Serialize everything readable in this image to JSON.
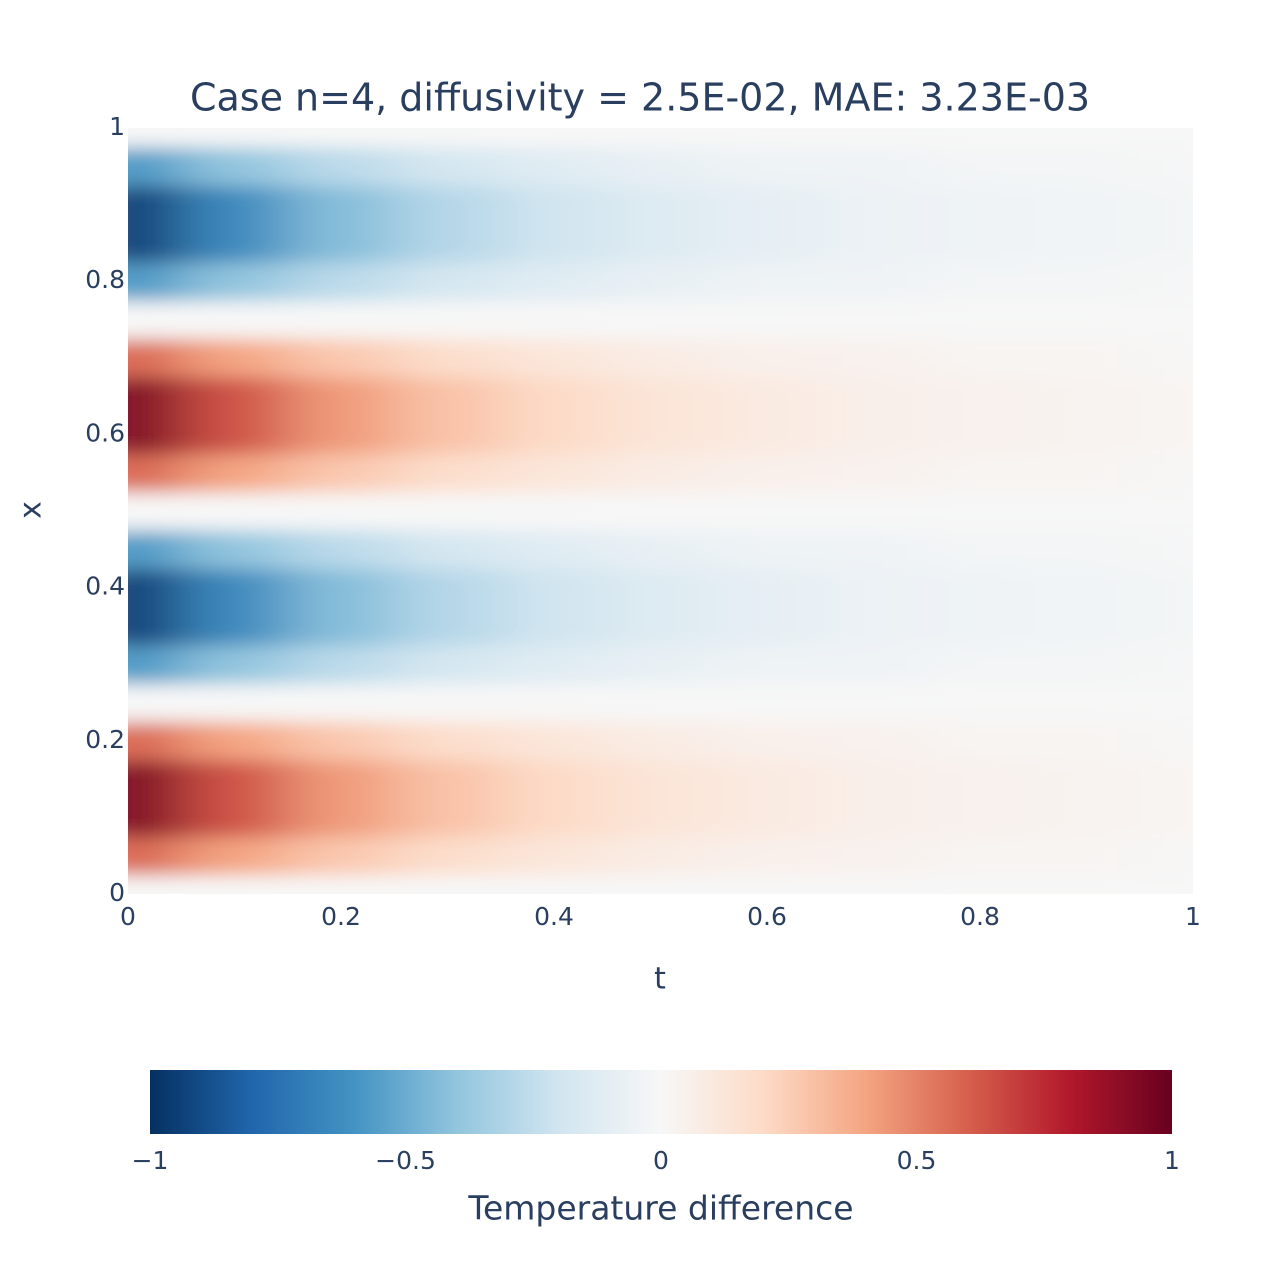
{
  "chart_data": {
    "type": "heatmap",
    "title": "Case n=4, diffusivity = 2.5E-02, MAE: 3.23E-03",
    "x_label": "t",
    "y_label": "x",
    "x": [
      0,
      0.1,
      0.2,
      0.3,
      0.4,
      0.5,
      0.6,
      0.7,
      0.8,
      0.9,
      1
    ],
    "y": [
      0,
      0.05,
      0.1,
      0.15,
      0.2,
      0.25,
      0.3,
      0.35,
      0.4,
      0.45,
      0.5,
      0.55,
      0.6,
      0.65,
      0.7,
      0.75,
      0.8,
      0.85,
      0.9,
      0.95,
      1
    ],
    "z": [
      [
        0,
        0,
        0,
        0,
        0,
        0,
        0,
        0,
        0,
        0,
        0
      ],
      [
        0.59,
        0.4,
        0.27,
        0.18,
        0.12,
        0.08,
        0.05,
        0.04,
        0.02,
        0.02,
        0.01
      ],
      [
        0.95,
        0.64,
        0.43,
        0.29,
        0.2,
        0.13,
        0.09,
        0.06,
        0.04,
        0.03,
        0.02
      ],
      [
        0.95,
        0.64,
        0.43,
        0.29,
        0.2,
        0.13,
        0.09,
        0.06,
        0.04,
        0.03,
        0.02
      ],
      [
        0.59,
        0.4,
        0.27,
        0.18,
        0.12,
        0.08,
        0.05,
        0.04,
        0.02,
        0.02,
        0.01
      ],
      [
        0,
        0,
        0,
        0,
        0,
        0,
        0,
        0,
        0,
        0,
        0
      ],
      [
        -0.59,
        -0.4,
        -0.27,
        -0.18,
        -0.12,
        -0.08,
        -0.05,
        -0.04,
        -0.02,
        -0.02,
        -0.01
      ],
      [
        -0.95,
        -0.64,
        -0.43,
        -0.29,
        -0.2,
        -0.13,
        -0.09,
        -0.06,
        -0.04,
        -0.03,
        -0.02
      ],
      [
        -0.95,
        -0.64,
        -0.43,
        -0.29,
        -0.2,
        -0.13,
        -0.09,
        -0.06,
        -0.04,
        -0.03,
        -0.02
      ],
      [
        -0.59,
        -0.4,
        -0.27,
        -0.18,
        -0.12,
        -0.08,
        -0.05,
        -0.04,
        -0.02,
        -0.02,
        -0.01
      ],
      [
        0,
        0,
        0,
        0,
        0,
        0,
        0,
        0,
        0,
        0,
        0
      ],
      [
        0.59,
        0.4,
        0.27,
        0.18,
        0.12,
        0.08,
        0.05,
        0.04,
        0.02,
        0.02,
        0.01
      ],
      [
        0.95,
        0.64,
        0.43,
        0.29,
        0.2,
        0.13,
        0.09,
        0.06,
        0.04,
        0.03,
        0.02
      ],
      [
        0.95,
        0.64,
        0.43,
        0.29,
        0.2,
        0.13,
        0.09,
        0.06,
        0.04,
        0.03,
        0.02
      ],
      [
        0.59,
        0.4,
        0.27,
        0.18,
        0.12,
        0.08,
        0.05,
        0.04,
        0.02,
        0.02,
        0.01
      ],
      [
        0,
        0,
        0,
        0,
        0,
        0,
        0,
        0,
        0,
        0,
        0
      ],
      [
        -0.59,
        -0.4,
        -0.27,
        -0.18,
        -0.12,
        -0.08,
        -0.05,
        -0.04,
        -0.02,
        -0.02,
        -0.01
      ],
      [
        -0.95,
        -0.64,
        -0.43,
        -0.29,
        -0.2,
        -0.13,
        -0.09,
        -0.06,
        -0.04,
        -0.03,
        -0.02
      ],
      [
        -0.95,
        -0.64,
        -0.43,
        -0.29,
        -0.2,
        -0.13,
        -0.09,
        -0.06,
        -0.04,
        -0.03,
        -0.02
      ],
      [
        -0.59,
        -0.4,
        -0.27,
        -0.18,
        -0.12,
        -0.08,
        -0.05,
        -0.04,
        -0.02,
        -0.02,
        -0.01
      ],
      [
        0,
        0,
        0,
        0,
        0,
        0,
        0,
        0,
        0,
        0,
        0
      ]
    ],
    "xlim": [
      0,
      1
    ],
    "ylim": [
      0,
      1
    ],
    "xticks": [
      0,
      0.2,
      0.4,
      0.6,
      0.8,
      1
    ],
    "yticks": [
      0,
      0.2,
      0.4,
      0.6,
      0.8,
      1
    ],
    "colorbar": {
      "title": "Temperature difference",
      "zlim": [
        -1,
        1
      ],
      "ticks": [
        {
          "value": -1,
          "label": "−1"
        },
        {
          "value": -0.5,
          "label": "−0.5"
        },
        0,
        0.5,
        1
      ],
      "colorscale": [
        "#053061",
        "#2166ac",
        "#4393c3",
        "#92c5de",
        "#d1e5f0",
        "#f7f7f7",
        "#fddbc7",
        "#f4a582",
        "#d6604d",
        "#b2182b",
        "#67001f"
      ]
    }
  }
}
